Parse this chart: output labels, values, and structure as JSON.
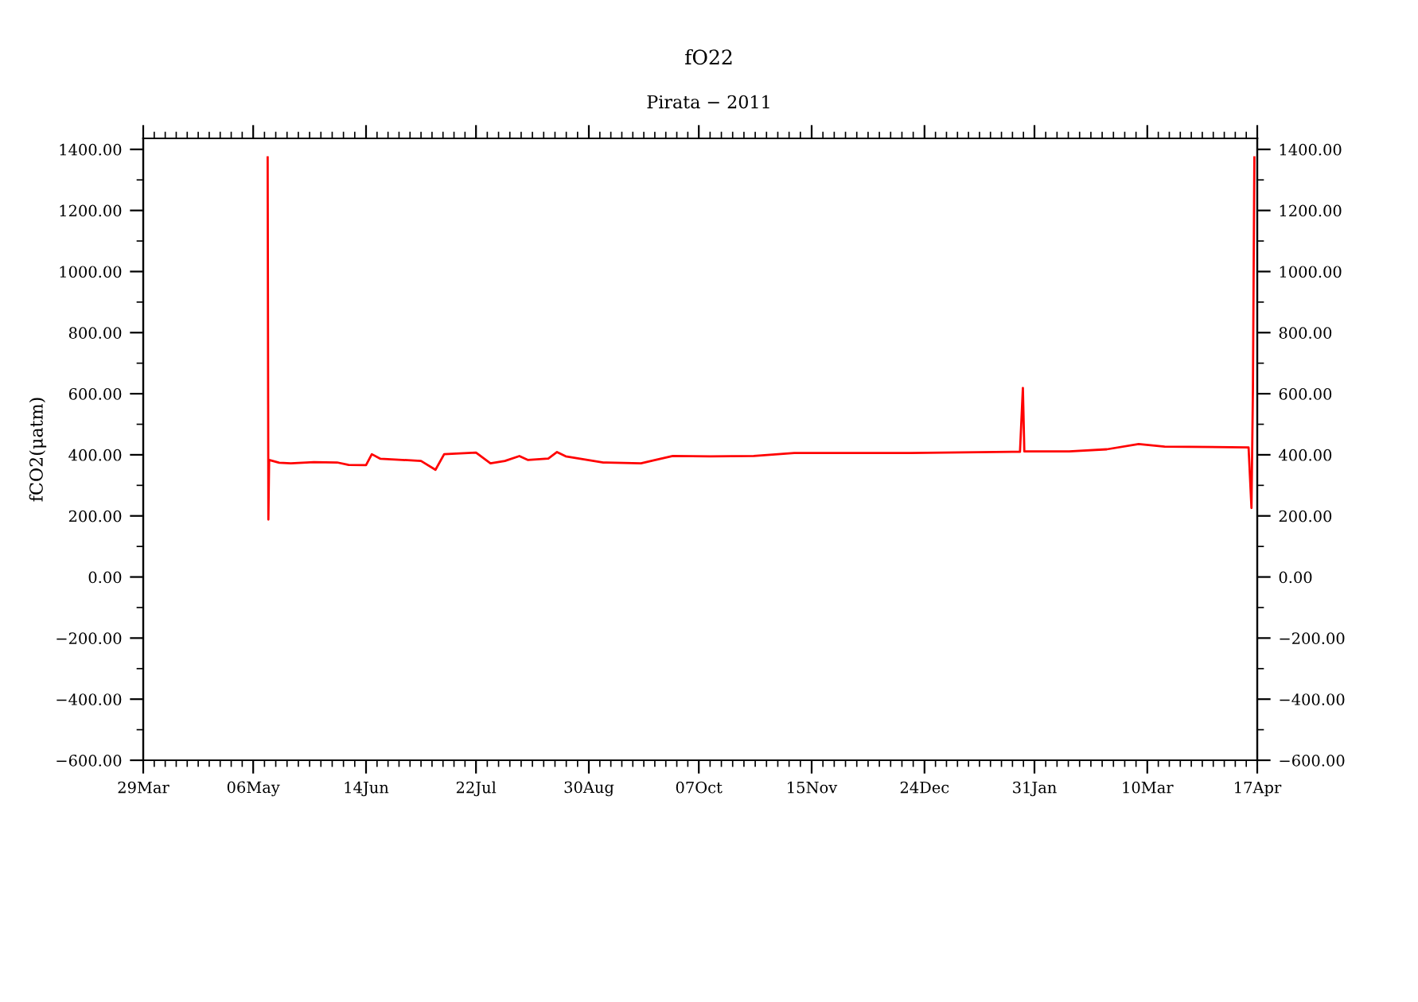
{
  "chart_data": {
    "type": "line",
    "title": "fO22",
    "subtitle": "Pirata − 2011",
    "ylabel": "fCO2(μatm)",
    "x": [
      "2011-05-11T00:00",
      "2011-05-11T06:00",
      "2011-05-11T12:00",
      "2011-05-15",
      "2011-05-19",
      "2011-05-27",
      "2011-06-04",
      "2011-06-08",
      "2011-06-14",
      "2011-06-16",
      "2011-06-19",
      "2011-07-03",
      "2011-07-08",
      "2011-07-11",
      "2011-07-22",
      "2011-07-27",
      "2011-08-01",
      "2011-08-06",
      "2011-08-09",
      "2011-08-16",
      "2011-08-19",
      "2011-08-22",
      "2011-09-04",
      "2011-09-17",
      "2011-09-22",
      "2011-09-28",
      "2011-10-11",
      "2011-10-26",
      "2011-11-09",
      "2011-12-19",
      "2012-01-26",
      "2012-01-27",
      "2012-01-27T12:00",
      "2012-02-12",
      "2012-02-25",
      "2012-03-07",
      "2012-03-16",
      "2012-04-14",
      "2012-04-15",
      "2012-04-15T12:00",
      "2012-04-16"
    ],
    "series": [
      {
        "color": "#ff0000",
        "values": [
          1374,
          188,
          383,
          374,
          372,
          376,
          375,
          367,
          366,
          402,
          387,
          380,
          351,
          402,
          407,
          372,
          380,
          396,
          383,
          388,
          409,
          395,
          375,
          372,
          383,
          396,
          395,
          396,
          406,
          406,
          410,
          619,
          411,
          411,
          418,
          435,
          427,
          424,
          226,
          612,
          1374
        ]
      }
    ],
    "xlim": [
      "2011-03-29",
      "2012-04-17"
    ],
    "xticks": [
      {
        "value": "2011-03-29",
        "label": "29Mar"
      },
      {
        "value": "2011-05-06",
        "label": "06May"
      },
      {
        "value": "2011-06-14",
        "label": "14Jun"
      },
      {
        "value": "2011-07-22",
        "label": "22Jul"
      },
      {
        "value": "2011-08-30",
        "label": "30Aug"
      },
      {
        "value": "2011-10-07",
        "label": "07Oct"
      },
      {
        "value": "2011-11-15",
        "label": "15Nov"
      },
      {
        "value": "2011-12-24",
        "label": "24Dec"
      },
      {
        "value": "2012-01-31",
        "label": "31Jan"
      },
      {
        "value": "2012-03-10",
        "label": "10Mar"
      },
      {
        "value": "2012-04-17",
        "label": "17Apr"
      }
    ],
    "ylim": [
      -600,
      1436
    ],
    "yticks": [
      {
        "value": -600,
        "label": "−600.00"
      },
      {
        "value": -400,
        "label": "−400.00"
      },
      {
        "value": -200,
        "label": "−200.00"
      },
      {
        "value": 0,
        "label": "0.00"
      },
      {
        "value": 200,
        "label": "200.00"
      },
      {
        "value": 400,
        "label": "400.00"
      },
      {
        "value": 600,
        "label": "600.00"
      },
      {
        "value": 800,
        "label": "800.00"
      },
      {
        "value": 1000,
        "label": "1000.00"
      },
      {
        "value": 1200,
        "label": "1200.00"
      },
      {
        "value": 1400,
        "label": "1400.00"
      }
    ],
    "y2lim": [
      -600,
      1436
    ],
    "y2ticks": [
      {
        "value": -600,
        "label": "−600.00"
      },
      {
        "value": -400,
        "label": "−400.00"
      },
      {
        "value": -200,
        "label": "−200.00"
      },
      {
        "value": 0,
        "label": "0.00"
      },
      {
        "value": 200,
        "label": "200.00"
      },
      {
        "value": 400,
        "label": "400.00"
      },
      {
        "value": 600,
        "label": "600.00"
      },
      {
        "value": 800,
        "label": "800.00"
      },
      {
        "value": 1000,
        "label": "1000.00"
      },
      {
        "value": 1200,
        "label": "1200.00"
      },
      {
        "value": 1400,
        "label": "1400.00"
      }
    ],
    "grid": false,
    "legend": false
  }
}
